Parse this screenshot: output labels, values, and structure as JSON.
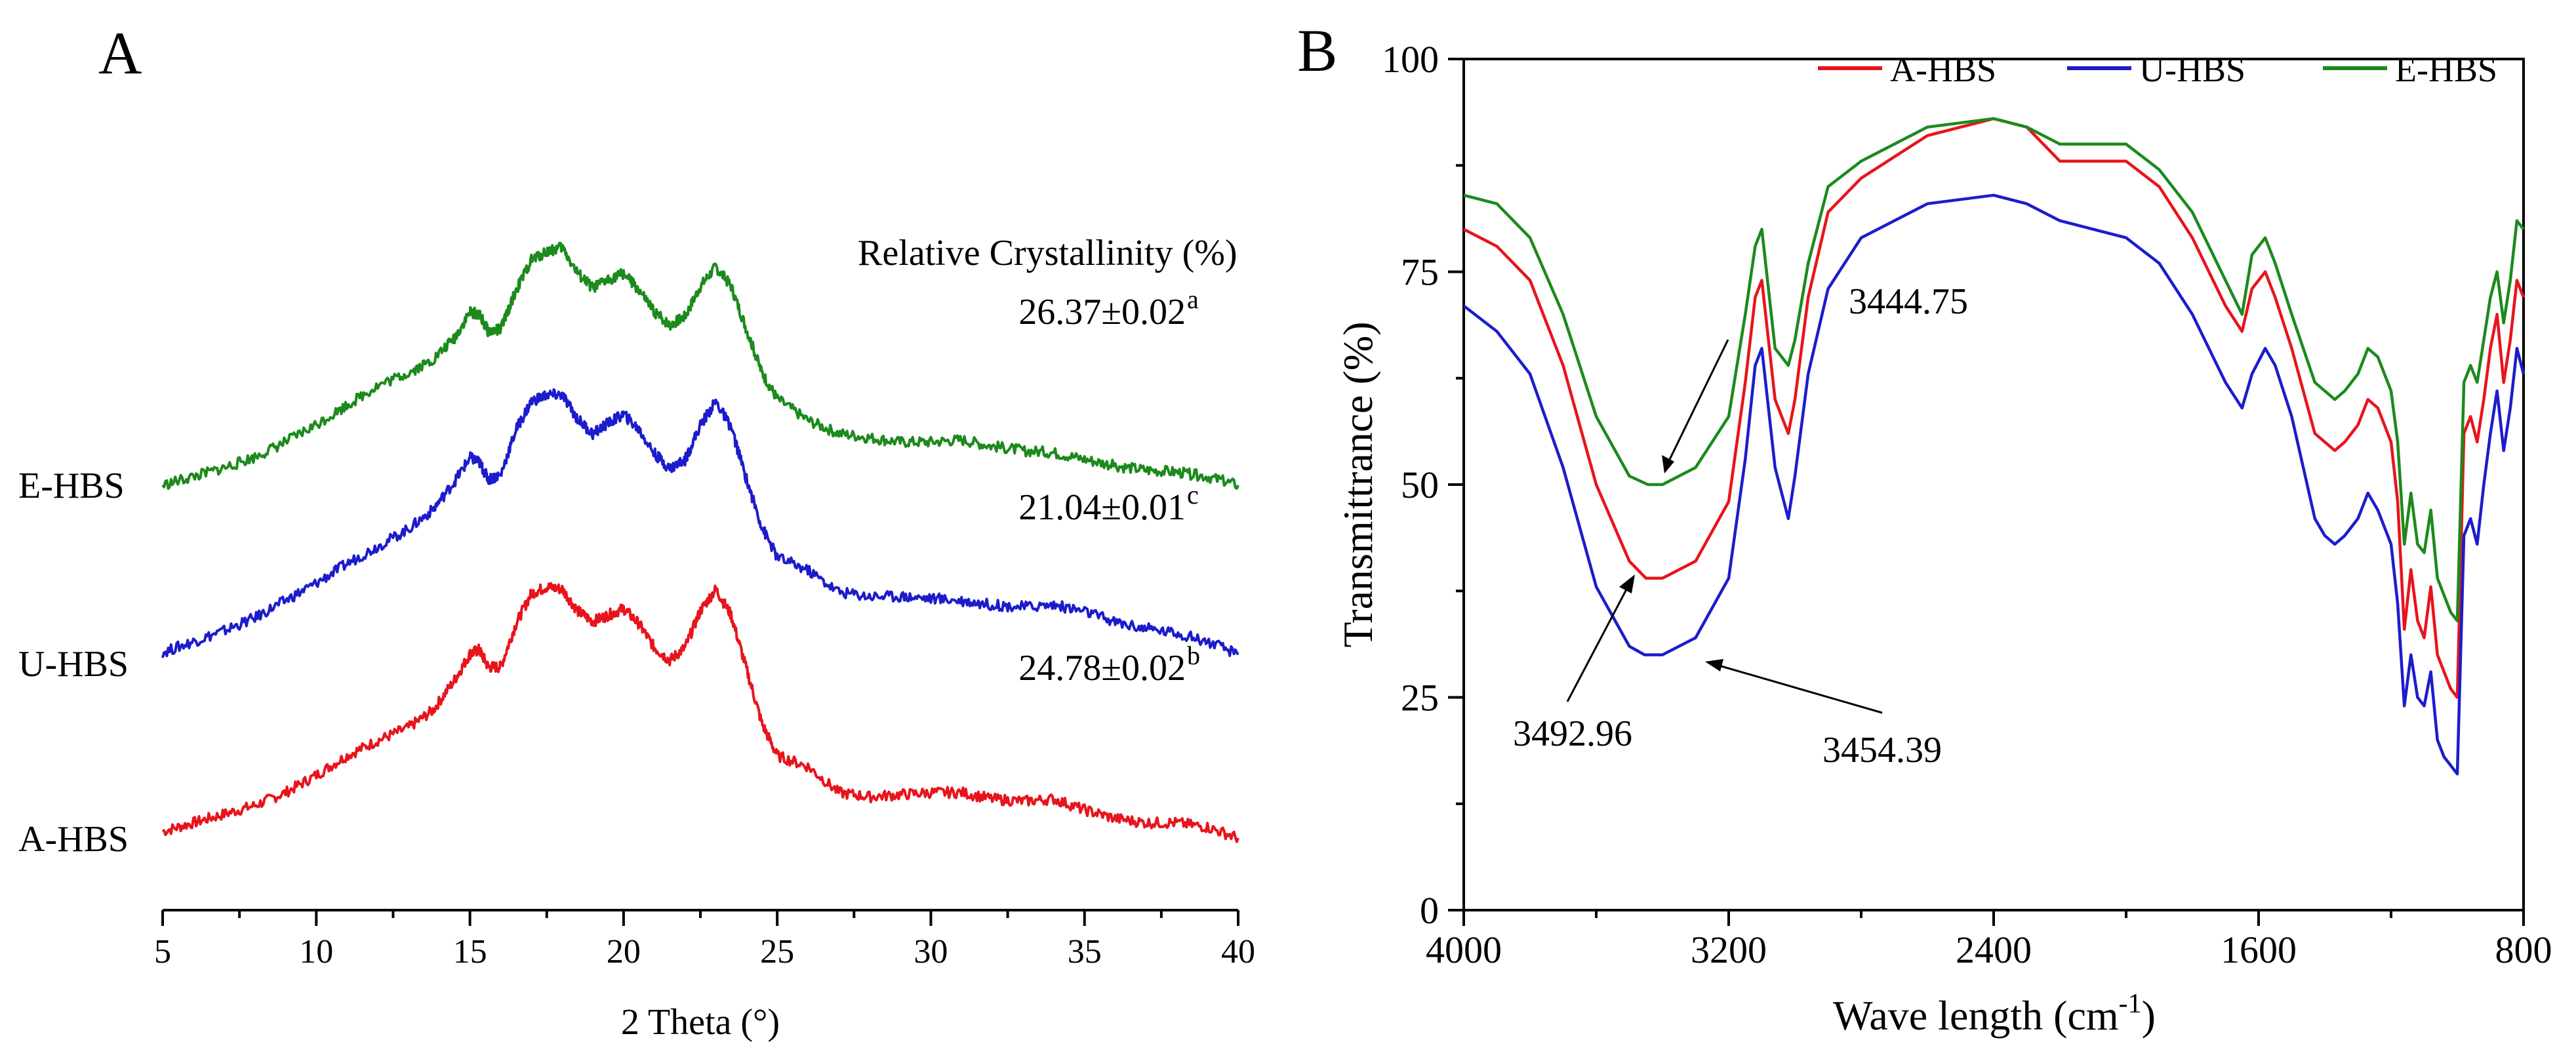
{
  "chart_data": [
    {
      "type": "line",
      "panel_label": "A",
      "title": "",
      "xlabel": "2 Theta (°)",
      "ylabel": "",
      "xlim": [
        5,
        40
      ],
      "x_ticks": [
        5,
        10,
        15,
        20,
        25,
        30,
        35,
        40
      ],
      "grid": false,
      "annotation_header": "Relative Crystallinity (%)",
      "series": [
        {
          "name": "A-HBS",
          "color": "#e8141c",
          "crystallinity_value": "24.78±0.02",
          "crystallinity_superscript": "b",
          "x": [
            5,
            6,
            7,
            8,
            9,
            10,
            11,
            12,
            13,
            13.8,
            14.5,
            15,
            15.3,
            15.6,
            16,
            16.5,
            17,
            17.5,
            18,
            18.5,
            19,
            19.5,
            20,
            20.5,
            21,
            21.5,
            22,
            22.5,
            23,
            23.5,
            24,
            24.5,
            25,
            26,
            27,
            28,
            29,
            30,
            31,
            32,
            33,
            34,
            35,
            36,
            37,
            38,
            39,
            40
          ],
          "y": [
            0,
            4,
            8,
            12,
            18,
            26,
            35,
            42,
            48,
            56,
            70,
            82,
            84,
            76,
            76,
            96,
            110,
            113,
            112,
            102,
            97,
            100,
            103,
            96,
            85,
            79,
            85,
            102,
            112,
            100,
            75,
            50,
            35,
            30,
            18,
            16,
            17,
            18,
            18,
            15,
            14,
            15,
            10,
            6,
            4,
            4,
            2,
            -3
          ]
        },
        {
          "name": "U-HBS",
          "color": "#1c1ccc",
          "crystallinity_value": "21.04±0.01",
          "crystallinity_superscript": "c",
          "x": [
            5,
            6,
            7,
            8,
            9,
            10,
            11,
            12,
            13,
            13.8,
            14.5,
            15,
            15.3,
            15.6,
            16,
            16.5,
            17,
            17.5,
            18,
            18.5,
            19,
            19.5,
            20,
            20.5,
            21,
            21.5,
            22,
            22.5,
            23,
            23.5,
            24,
            24.5,
            25,
            26,
            27,
            28,
            29,
            30,
            31,
            32,
            33,
            34,
            35,
            36,
            37,
            38,
            39,
            40
          ],
          "y": [
            0,
            5,
            10,
            16,
            24,
            32,
            41,
            49,
            57,
            66,
            79,
            90,
            88,
            80,
            82,
            103,
            116,
            119,
            119,
            108,
            101,
            106,
            110,
            103,
            92,
            85,
            89,
            105,
            116,
            104,
            80,
            58,
            44,
            38,
            28,
            26,
            26,
            25,
            24,
            22,
            21,
            22,
            19,
            14,
            11,
            9,
            5,
            -1
          ]
        },
        {
          "name": "E-HBS",
          "color": "#1c8a1c",
          "crystallinity_value": "26.37±0.02",
          "crystallinity_superscript": "a",
          "x": [
            5,
            6,
            7,
            8,
            9,
            10,
            11,
            12,
            13,
            13.8,
            14.5,
            15,
            15.3,
            15.6,
            16,
            16.5,
            17,
            17.5,
            18,
            18.5,
            19,
            19.5,
            20,
            20.5,
            21,
            21.5,
            22,
            22.5,
            23,
            23.5,
            24,
            24.5,
            25,
            26,
            27,
            28,
            29,
            30,
            31,
            32,
            33,
            34,
            35,
            36,
            37,
            38,
            39,
            40
          ],
          "y": [
            0,
            4,
            8,
            13,
            20,
            28,
            37,
            46,
            52,
            58,
            68,
            80,
            79,
            71,
            72,
            90,
            104,
            108,
            110,
            98,
            91,
            95,
            98,
            90,
            80,
            74,
            78,
            92,
            101,
            92,
            72,
            52,
            40,
            30,
            24,
            22,
            20,
            20,
            21,
            18,
            16,
            15,
            12,
            9,
            7,
            6,
            4,
            0
          ]
        }
      ]
    },
    {
      "type": "line",
      "panel_label": "B",
      "title": "",
      "xlabel": "Wave length (cm",
      "xlabel_superscript": "-1",
      "xlabel_suffix": ")",
      "ylabel": "Transmittrance (%)",
      "xlim": [
        4000,
        800
      ],
      "ylim": [
        0,
        100
      ],
      "x_ticks": [
        4000,
        3200,
        2400,
        1600,
        800
      ],
      "y_ticks": [
        0,
        25,
        50,
        75,
        100
      ],
      "grid": false,
      "legend_position": "top-right",
      "series": [
        {
          "name": "A-HBS",
          "color": "#e8141c",
          "x": [
            4000,
            3900,
            3800,
            3700,
            3600,
            3500,
            3450,
            3400,
            3300,
            3200,
            3150,
            3120,
            3100,
            3060,
            3020,
            3000,
            2960,
            2900,
            2800,
            2600,
            2400,
            2300,
            2200,
            2000,
            1900,
            1800,
            1700,
            1650,
            1620,
            1580,
            1550,
            1500,
            1430,
            1400,
            1370,
            1340,
            1300,
            1270,
            1240,
            1200,
            1180,
            1160,
            1140,
            1120,
            1100,
            1080,
            1060,
            1040,
            1020,
            1000,
            980,
            960,
            940,
            920,
            900,
            880,
            860,
            840,
            820,
            800
          ],
          "y": [
            80,
            78,
            74,
            64,
            50,
            41,
            39,
            39,
            41,
            48,
            62,
            72,
            74,
            60,
            56,
            60,
            72,
            82,
            86,
            91,
            93,
            92,
            88,
            88,
            85,
            79,
            71,
            68,
            73,
            75,
            72,
            66,
            56,
            55,
            54,
            55,
            57,
            60,
            59,
            55,
            48,
            33,
            40,
            34,
            32,
            38,
            30,
            28,
            26,
            25,
            56,
            58,
            55,
            60,
            66,
            70,
            62,
            67,
            74,
            72
          ]
        },
        {
          "name": "U-HBS",
          "color": "#1c1ccc",
          "x": [
            4000,
            3900,
            3800,
            3700,
            3600,
            3500,
            3454,
            3400,
            3300,
            3200,
            3150,
            3120,
            3100,
            3060,
            3020,
            3000,
            2960,
            2900,
            2800,
            2600,
            2400,
            2300,
            2200,
            2000,
            1900,
            1800,
            1700,
            1650,
            1620,
            1580,
            1550,
            1500,
            1430,
            1400,
            1370,
            1340,
            1300,
            1270,
            1240,
            1200,
            1180,
            1160,
            1140,
            1120,
            1100,
            1080,
            1060,
            1040,
            1020,
            1000,
            980,
            960,
            940,
            920,
            900,
            880,
            860,
            840,
            820,
            800
          ],
          "y": [
            71,
            68,
            63,
            52,
            38,
            31,
            30,
            30,
            32,
            39,
            53,
            64,
            66,
            52,
            46,
            51,
            63,
            73,
            79,
            83,
            84,
            83,
            81,
            79,
            76,
            70,
            62,
            59,
            63,
            66,
            64,
            58,
            46,
            44,
            43,
            44,
            46,
            49,
            47,
            43,
            36,
            24,
            30,
            25,
            24,
            28,
            20,
            18,
            17,
            16,
            44,
            46,
            43,
            50,
            56,
            61,
            54,
            59,
            66,
            63
          ]
        },
        {
          "name": "E-HBS",
          "color": "#1c8a1c",
          "x": [
            4000,
            3900,
            3800,
            3700,
            3600,
            3500,
            3444,
            3400,
            3300,
            3200,
            3150,
            3120,
            3100,
            3060,
            3020,
            3000,
            2960,
            2900,
            2800,
            2600,
            2400,
            2300,
            2200,
            2000,
            1900,
            1800,
            1700,
            1650,
            1620,
            1580,
            1550,
            1500,
            1430,
            1400,
            1370,
            1340,
            1300,
            1270,
            1240,
            1200,
            1180,
            1160,
            1140,
            1120,
            1100,
            1080,
            1060,
            1040,
            1020,
            1000,
            980,
            960,
            940,
            920,
            900,
            880,
            860,
            840,
            820,
            800
          ],
          "y": [
            84,
            83,
            79,
            70,
            58,
            51,
            50,
            50,
            52,
            58,
            70,
            78,
            80,
            66,
            64,
            67,
            76,
            85,
            88,
            92,
            93,
            92,
            90,
            90,
            87,
            82,
            74,
            70,
            77,
            79,
            76,
            70,
            62,
            61,
            60,
            61,
            63,
            66,
            65,
            61,
            55,
            43,
            49,
            43,
            42,
            47,
            39,
            37,
            35,
            34,
            62,
            64,
            62,
            67,
            72,
            75,
            69,
            74,
            81,
            80
          ]
        }
      ],
      "annotations": [
        "3444.75",
        "3492.96",
        "3454.39"
      ]
    }
  ]
}
